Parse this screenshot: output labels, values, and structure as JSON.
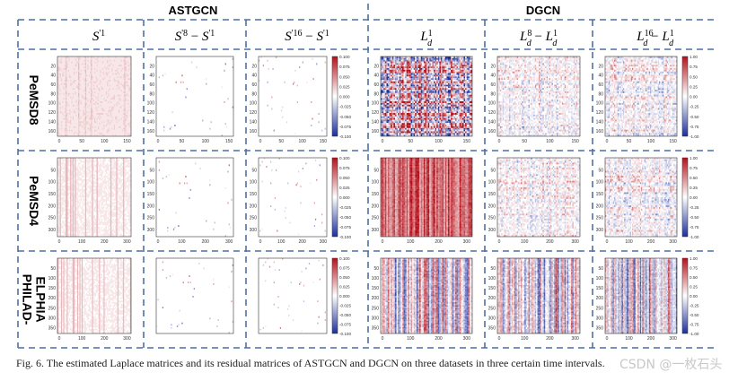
{
  "figure": {
    "group_headers": [
      "ASTGCN",
      "DGCN"
    ],
    "column_labels": [
      "S'1",
      "S'8 − S'1",
      "S'16 − S'1",
      "L1d",
      "L8d − L1d",
      "L16d − L1d"
    ],
    "column_label_parts": [
      {
        "base": "S",
        "sup": "'1",
        "sub": "",
        "minus": "",
        "base2": "",
        "sup2": "",
        "sub2": ""
      },
      {
        "base": "S",
        "sup": "'8",
        "sub": "",
        "minus": " − ",
        "base2": "S",
        "sup2": "'1",
        "sub2": ""
      },
      {
        "base": "S",
        "sup": "'16",
        "sub": "",
        "minus": " − ",
        "base2": "S",
        "sup2": "'1",
        "sub2": ""
      },
      {
        "base": "L",
        "sup": "1",
        "sub": "d",
        "minus": "",
        "base2": "",
        "sup2": "",
        "sub2": ""
      },
      {
        "base": "L",
        "sup": "8",
        "sub": "d",
        "minus": " − ",
        "base2": "L",
        "sup2": "1",
        "sub2": "d"
      },
      {
        "base": "L",
        "sup": "16",
        "sub": "d",
        "minus": " − ",
        "base2": "L",
        "sup2": "1",
        "sub2": "d"
      }
    ],
    "row_labels": [
      "PeMSD8",
      "PeMSD4",
      "PHILAD-ELPHIA"
    ],
    "row_label_lines": [
      [
        "PeMSD8"
      ],
      [
        "PeMSD4"
      ],
      [
        "PHILAD-",
        "ELPHIA"
      ]
    ],
    "caption": "Fig. 6.    The estimated Laplace matrices and its residual matrices of ASTGCN and DGCN on three datasets in three certain time intervals.",
    "watermark": "CSDN @一枚石头"
  },
  "colors": {
    "divider": "#4f6f9f",
    "neg": "#1b2f9a",
    "mid": "#ffffff",
    "pos": "#b3101b"
  },
  "chart_data": {
    "type": "heatmap",
    "rows": [
      "PeMSD8",
      "PeMSD4",
      "PHILAD-ELPHIA"
    ],
    "columns": [
      "S'1",
      "S'8 − S'1",
      "S'16 − S'1",
      "L1d",
      "L8d − L1d",
      "L16d − L1d"
    ],
    "panels": [
      {
        "row": 0,
        "col": 0,
        "pattern": "soft-positive",
        "x_ticks": [
          "0",
          "50",
          "100",
          "150"
        ],
        "y_ticks": [
          "20",
          "40",
          "60",
          "80",
          "100",
          "120",
          "140",
          "160"
        ],
        "colorbar": null
      },
      {
        "row": 0,
        "col": 1,
        "pattern": "faint-residual",
        "x_ticks": [
          "0",
          "50",
          "100",
          "150"
        ],
        "y_ticks": [
          "20",
          "40",
          "60",
          "80",
          "100",
          "120",
          "140",
          "160"
        ],
        "colorbar": null
      },
      {
        "row": 0,
        "col": 2,
        "pattern": "faint-residual",
        "x_ticks": [
          "0",
          "50",
          "100",
          "150"
        ],
        "y_ticks": [
          "20",
          "40",
          "60",
          "80",
          "100",
          "120",
          "140",
          "160"
        ],
        "colorbar": [
          "0.100",
          "0.075",
          "0.050",
          "0.025",
          "0.000",
          "-0.025",
          "-0.050",
          "-0.075",
          "-0.100"
        ]
      },
      {
        "row": 0,
        "col": 3,
        "pattern": "strong-mixed",
        "x_ticks": [
          "0",
          "50",
          "100",
          "150"
        ],
        "y_ticks": [
          "20",
          "40",
          "60",
          "80",
          "100",
          "120",
          "140",
          "160"
        ],
        "colorbar": null
      },
      {
        "row": 0,
        "col": 4,
        "pattern": "mixed-residual",
        "x_ticks": [
          "0",
          "50",
          "100",
          "150"
        ],
        "y_ticks": [
          "20",
          "40",
          "60",
          "80",
          "100",
          "120",
          "140",
          "160"
        ],
        "colorbar": null
      },
      {
        "row": 0,
        "col": 5,
        "pattern": "mixed-residual",
        "x_ticks": [
          "0",
          "50",
          "100",
          "150"
        ],
        "y_ticks": [
          "20",
          "40",
          "60",
          "80",
          "100",
          "120",
          "140",
          "160"
        ],
        "colorbar": [
          "1.00",
          "0.75",
          "0.50",
          "0.25",
          "0.00",
          "-0.25",
          "-0.50",
          "-0.75",
          "-1.00"
        ]
      },
      {
        "row": 1,
        "col": 0,
        "pattern": "soft-positive-stripes",
        "x_ticks": [
          "0",
          "100",
          "200",
          "300"
        ],
        "y_ticks": [
          "50",
          "100",
          "150",
          "200",
          "250",
          "300"
        ],
        "colorbar": null
      },
      {
        "row": 1,
        "col": 1,
        "pattern": "faint-residual",
        "x_ticks": [
          "0",
          "100",
          "200",
          "300"
        ],
        "y_ticks": [
          "50",
          "100",
          "150",
          "200",
          "250",
          "300"
        ],
        "colorbar": null
      },
      {
        "row": 1,
        "col": 2,
        "pattern": "faint-residual",
        "x_ticks": [
          "0",
          "100",
          "200",
          "300"
        ],
        "y_ticks": [
          "50",
          "100",
          "150",
          "200",
          "250",
          "300"
        ],
        "colorbar": [
          "0.100",
          "0.075",
          "0.050",
          "0.025",
          "0.000",
          "-0.025",
          "-0.050",
          "-0.075",
          "-0.100"
        ]
      },
      {
        "row": 1,
        "col": 3,
        "pattern": "strong-positive-columns",
        "x_ticks": [
          "0",
          "100",
          "200",
          "300"
        ],
        "y_ticks": [
          "50",
          "100",
          "150",
          "200",
          "250",
          "300"
        ],
        "colorbar": null
      },
      {
        "row": 1,
        "col": 4,
        "pattern": "mixed-residual",
        "x_ticks": [
          "0",
          "100",
          "200",
          "300"
        ],
        "y_ticks": [
          "50",
          "100",
          "150",
          "200",
          "250",
          "300"
        ],
        "colorbar": null
      },
      {
        "row": 1,
        "col": 5,
        "pattern": "mixed-residual",
        "x_ticks": [
          "0",
          "100",
          "200",
          "300"
        ],
        "y_ticks": [
          "50",
          "100",
          "150",
          "200",
          "250",
          "300"
        ],
        "colorbar": [
          "1.00",
          "0.75",
          "0.50",
          "0.25",
          "0.00",
          "-0.25",
          "-0.50",
          "-0.75",
          "-1.00"
        ]
      },
      {
        "row": 2,
        "col": 0,
        "pattern": "soft-positive-stripes",
        "x_ticks": [
          "0",
          "100",
          "200",
          "300"
        ],
        "y_ticks": [
          "50",
          "100",
          "150",
          "200",
          "250",
          "300",
          "350"
        ],
        "colorbar": null
      },
      {
        "row": 2,
        "col": 1,
        "pattern": "faint-residual",
        "x_ticks": [],
        "y_ticks": [],
        "colorbar": null
      },
      {
        "row": 2,
        "col": 2,
        "pattern": "faint-residual",
        "x_ticks": [],
        "y_ticks": [],
        "colorbar": [
          "0.100",
          "0.075",
          "0.050",
          "0.025",
          "0.000",
          "-0.025",
          "-0.050",
          "-0.075",
          "-0.100"
        ]
      },
      {
        "row": 2,
        "col": 3,
        "pattern": "mixed-columns",
        "x_ticks": [
          "0",
          "100",
          "200",
          "300"
        ],
        "y_ticks": [
          "50",
          "100",
          "150",
          "200",
          "250",
          "300",
          "350"
        ],
        "colorbar": null
      },
      {
        "row": 2,
        "col": 4,
        "pattern": "mixed-columns",
        "x_ticks": [
          "0",
          "100",
          "200",
          "300"
        ],
        "y_ticks": [
          "50",
          "100",
          "150",
          "200",
          "250",
          "300",
          "350"
        ],
        "colorbar": null
      },
      {
        "row": 2,
        "col": 5,
        "pattern": "mixed-columns",
        "x_ticks": [
          "0",
          "100",
          "200",
          "300"
        ],
        "y_ticks": [
          "50",
          "100",
          "150",
          "200",
          "250",
          "300",
          "350"
        ],
        "colorbar": [
          "1.00",
          "0.75",
          "0.50",
          "0.25",
          "0.00",
          "-0.25",
          "-0.50",
          "-0.75",
          "-1.00"
        ]
      }
    ]
  }
}
